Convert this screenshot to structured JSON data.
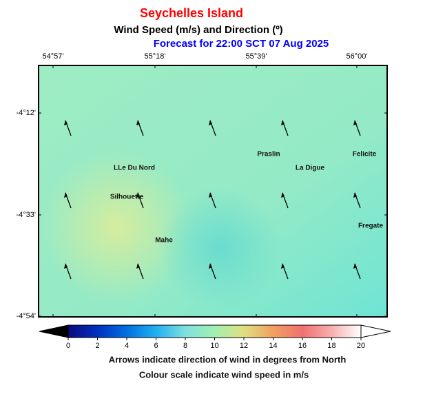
{
  "header": {
    "title": "Seychelles Island",
    "subtitle": "Wind Speed (m/s) and Direction (º)",
    "forecast": "Forecast for  22:00 SCT 07 Aug 2025"
  },
  "map": {
    "x_labels": [
      "54°57'",
      "55°18'",
      "55°39'",
      "56°00'"
    ],
    "y_labels": [
      "-4°12'",
      "-4°33'",
      "-4°54'"
    ],
    "places": [
      "Praslin",
      "Felicite",
      "LLe Du Nord",
      "La Digue",
      "Silhouette",
      "Mahe",
      "Fregate"
    ]
  },
  "colorbar": {
    "lim": [
      0,
      20
    ],
    "ticks": [
      0,
      2,
      4,
      6,
      8,
      10,
      12,
      14,
      16,
      18,
      20
    ]
  },
  "notes": [
    "Arrows indicate direction of wind in degrees from North",
    "Colour scale indicate wind speed in m/s"
  ]
}
